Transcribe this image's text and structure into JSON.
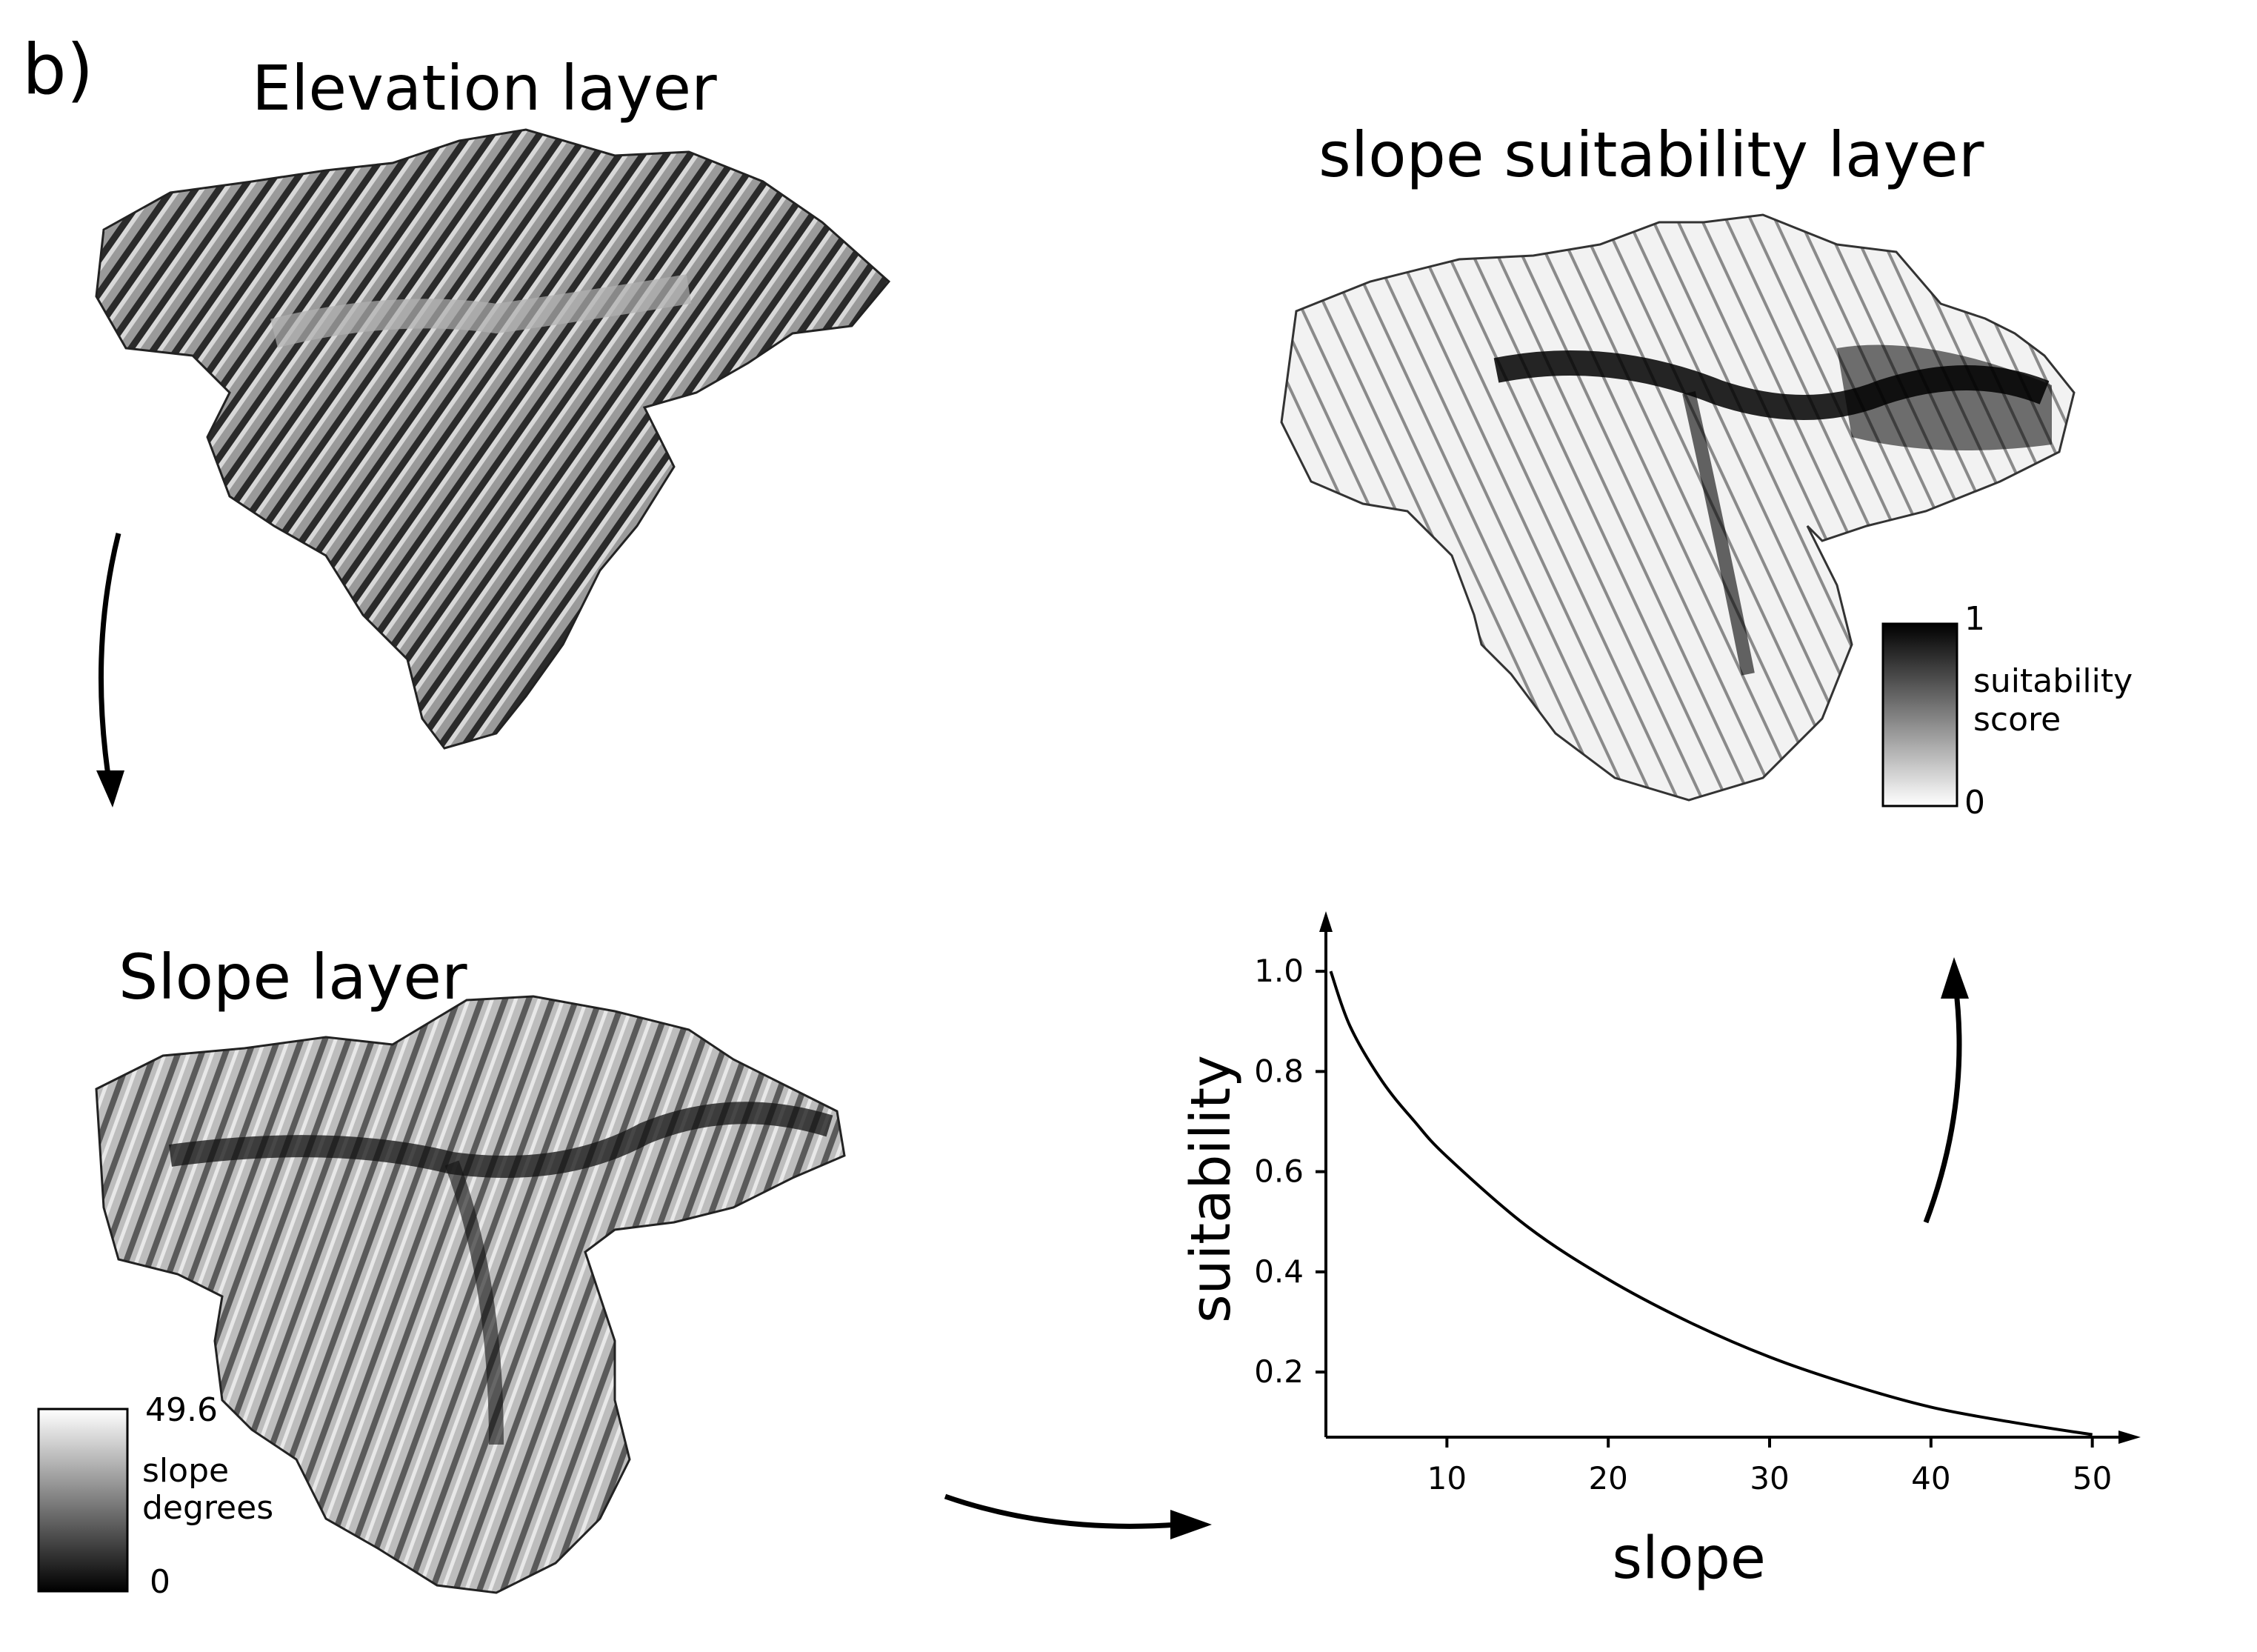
{
  "panel_label": "b)",
  "elevation": {
    "title": "Elevation layer"
  },
  "slope": {
    "title": "Slope layer",
    "legend": {
      "max": "49.6",
      "min": "0",
      "label_line1": "slope",
      "label_line2": "degrees"
    }
  },
  "suitability_map": {
    "title": "slope suitability layer",
    "legend": {
      "max": "1",
      "min": "0",
      "label_line1": "suitability",
      "label_line2": "score"
    }
  },
  "chart_data": {
    "type": "line",
    "xlabel": "slope",
    "ylabel": "suitability",
    "xlim": [
      2.5,
      53
    ],
    "ylim": [
      0.07,
      1.12
    ],
    "xticks": [
      10,
      20,
      30,
      40,
      50
    ],
    "yticks": [
      0.2,
      0.4,
      0.6,
      0.8,
      1.0
    ],
    "xtick_labels": [
      "10",
      "20",
      "30",
      "40",
      "50"
    ],
    "ytick_labels": [
      "0.2",
      "0.4",
      "0.6",
      "0.8",
      "1.0"
    ],
    "grid": false,
    "series": [
      {
        "x": [
          2.8,
          4,
          6,
          8,
          10,
          15,
          20,
          25,
          30,
          35,
          40,
          45,
          50
        ],
        "y": [
          1.0,
          0.89,
          0.78,
          0.7,
          0.63,
          0.49,
          0.385,
          0.3,
          0.23,
          0.175,
          0.13,
          0.1,
          0.075
        ]
      }
    ]
  }
}
